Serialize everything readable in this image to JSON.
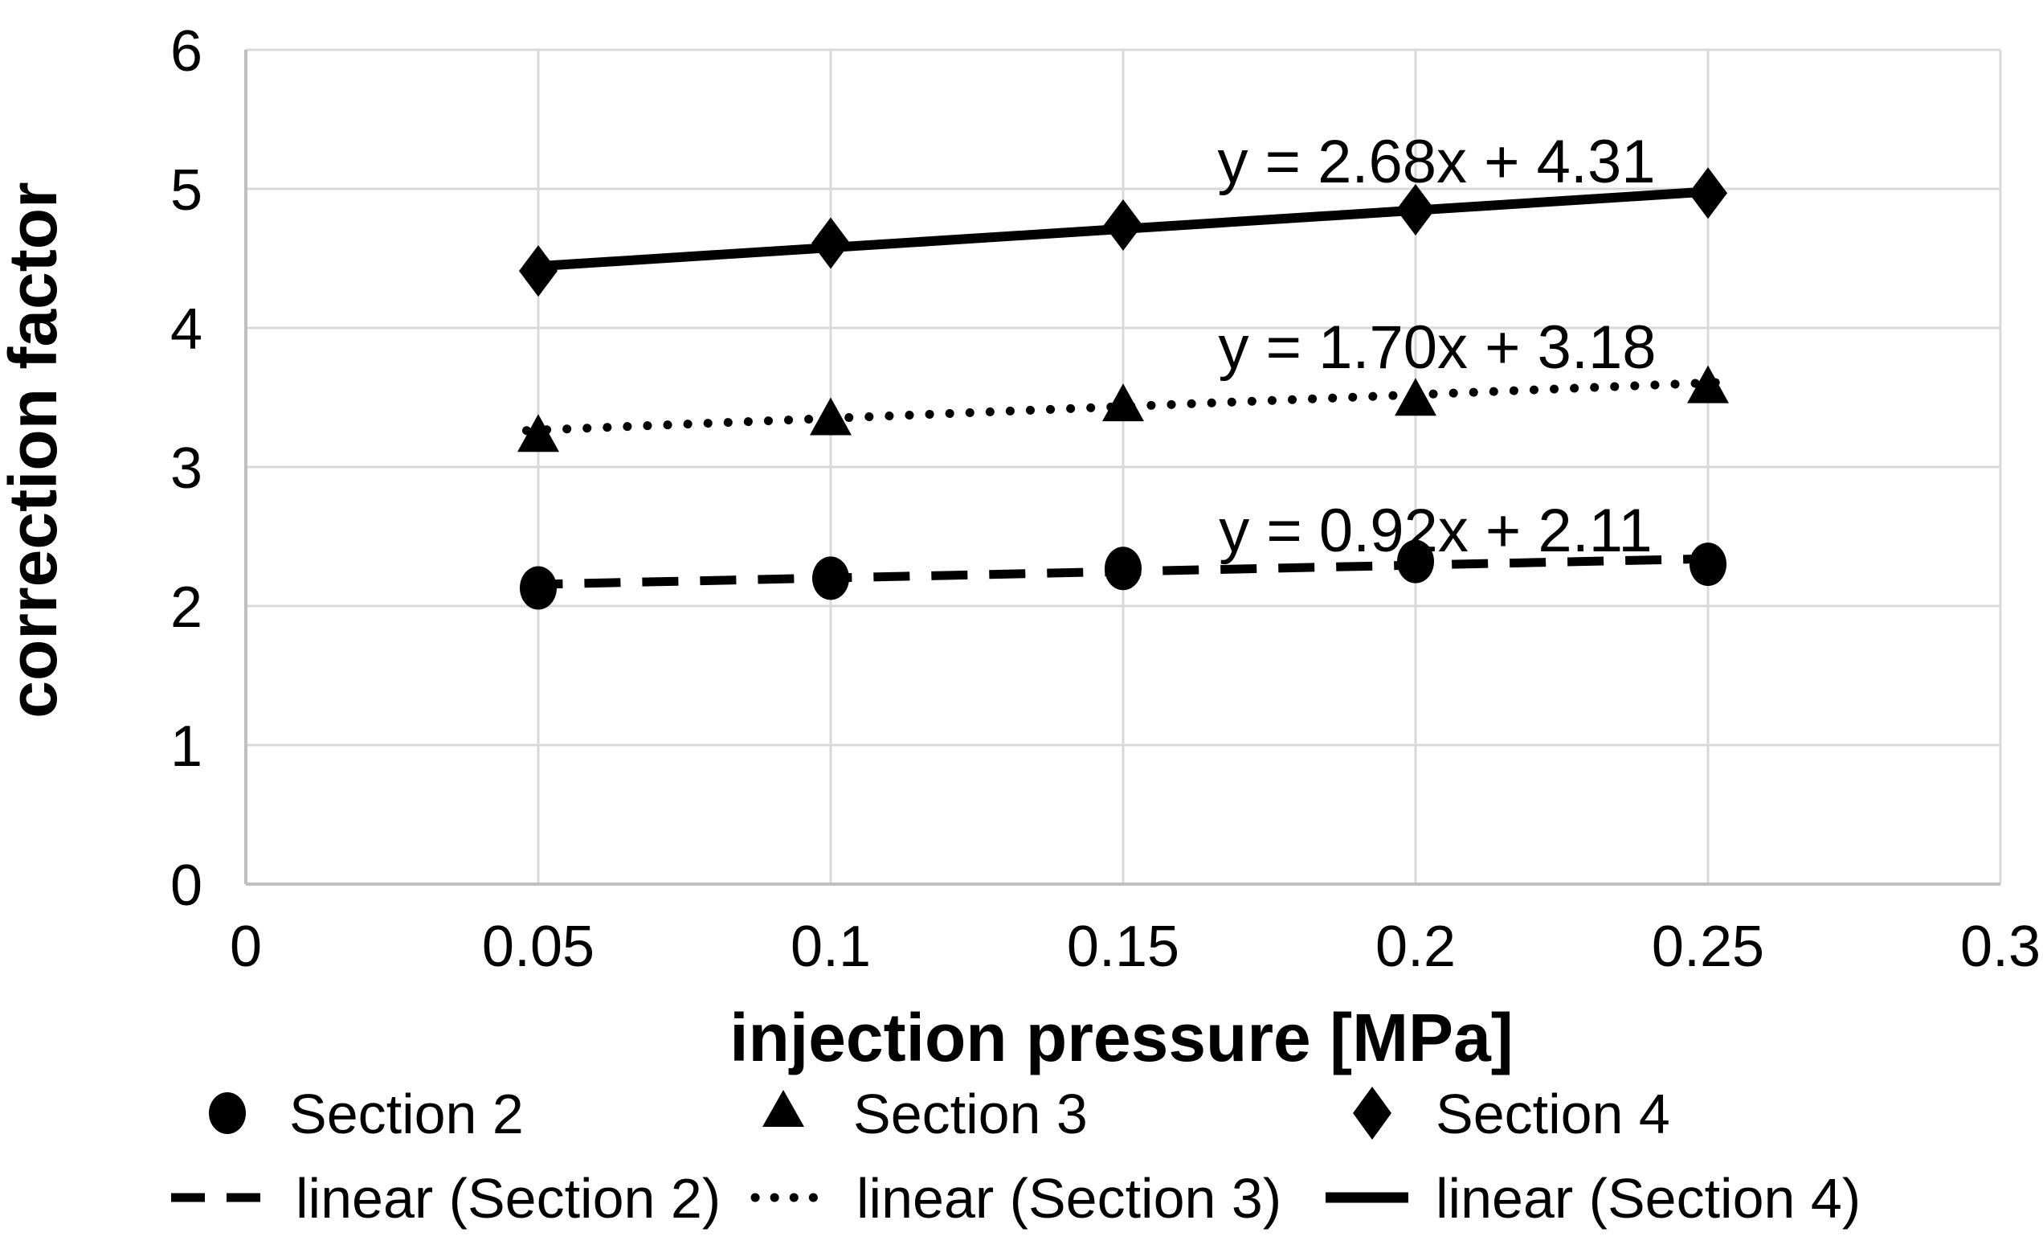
{
  "chart_data": {
    "type": "scatter",
    "title": "",
    "x_label": "injection pressure [MPa]",
    "y_label": "correction factor",
    "xlim": [
      0,
      0.3
    ],
    "ylim": [
      0,
      6
    ],
    "x_ticks": [
      0,
      0.05,
      0.1,
      0.15,
      0.2,
      0.25,
      0.3
    ],
    "x_tick_labels": [
      "0",
      "0.05",
      "0.1",
      "0.15",
      "0.2",
      "0.25",
      "0.3"
    ],
    "y_ticks": [
      0,
      1,
      2,
      3,
      4,
      5,
      6
    ],
    "y_tick_labels": [
      "0",
      "1",
      "2",
      "3",
      "4",
      "5",
      "6"
    ],
    "grid": true,
    "legend_position": "bottom",
    "x": [
      0.05,
      0.1,
      0.15,
      0.2,
      0.25
    ],
    "series": [
      {
        "name": "Section 2",
        "marker": "circle",
        "values": [
          2.13,
          2.2,
          2.27,
          2.32,
          2.3
        ],
        "trendline": {
          "label": "linear (Section 2)",
          "style": "dashed",
          "slope": 0.92,
          "intercept": 2.11,
          "equation": "y = 0.92x + 2.11"
        }
      },
      {
        "name": "Section 3",
        "marker": "triangle",
        "values": [
          3.23,
          3.35,
          3.45,
          3.49,
          3.58
        ],
        "trendline": {
          "label": "linear (Section 3)",
          "style": "dotted",
          "slope": 1.7,
          "intercept": 3.18,
          "equation": "y = 1.70x + 3.18"
        }
      },
      {
        "name": "Section 4",
        "marker": "diamond",
        "values": [
          4.41,
          4.61,
          4.74,
          4.85,
          4.97
        ],
        "trendline": {
          "label": "linear (Section 4)",
          "style": "solid",
          "slope": 2.68,
          "intercept": 4.31,
          "equation": "y = 2.68x + 4.31"
        }
      }
    ],
    "colors": {
      "series": "#000000",
      "grid": "#d9d9d9",
      "axis": "#bfbfbf",
      "text": "#000000",
      "background": "#ffffff"
    }
  }
}
